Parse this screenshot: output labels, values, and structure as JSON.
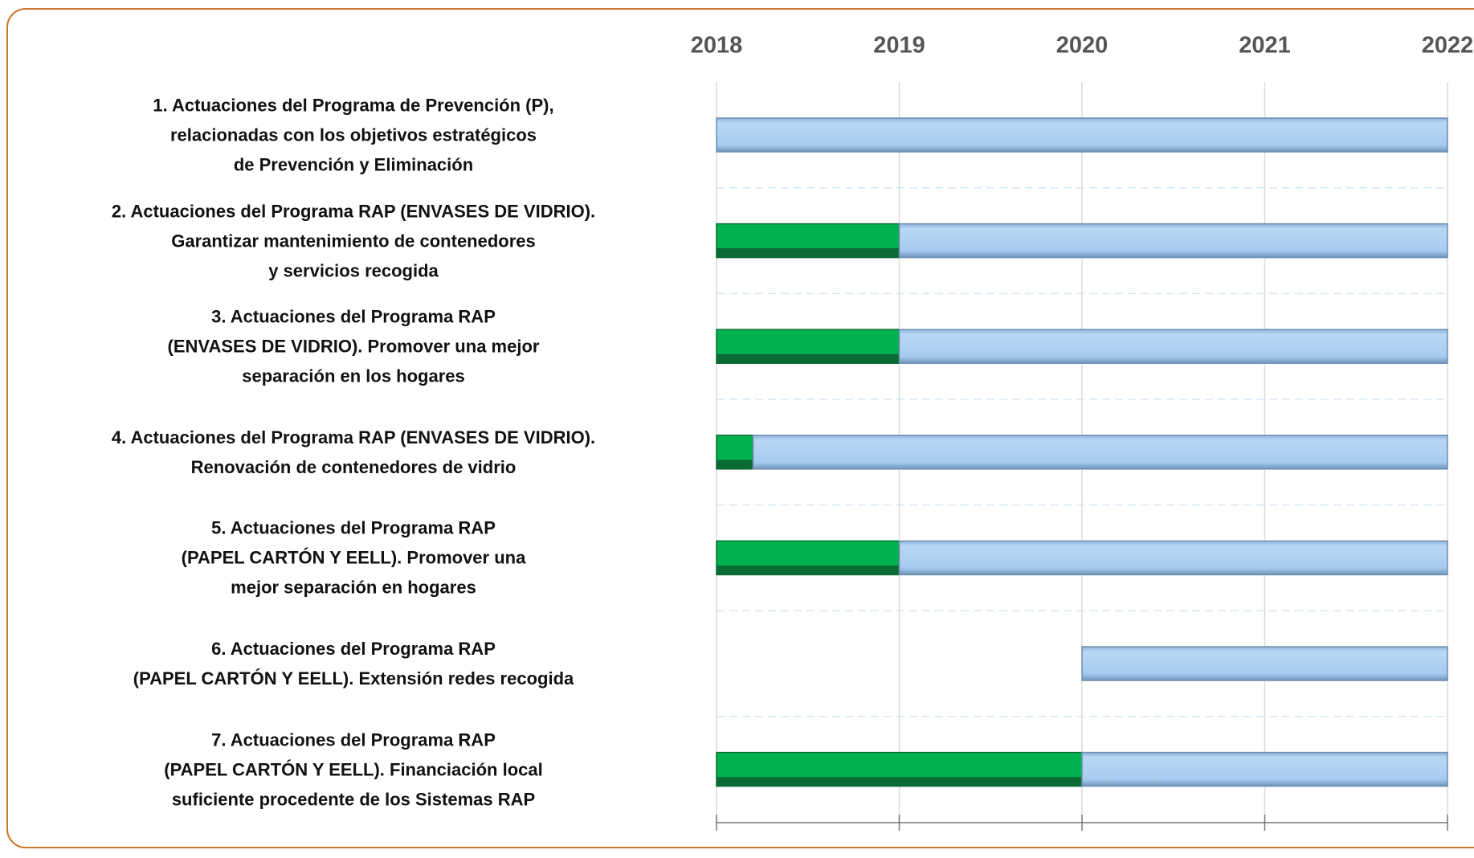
{
  "chart_data": {
    "type": "gantt",
    "categories": [
      "1. Actuaciones del Programa de Prevención (P),\nrelacionadas con los objetivos estratégicos\nde Prevención y Eliminación",
      "2. Actuaciones del Programa RAP (ENVASES DE VIDRIO).\nGarantizar mantenimiento de contenedores\ny servicios recogida",
      "3. Actuaciones del Programa RAP\n(ENVASES DE VIDRIO). Promover una mejor\nseparación en los hogares",
      "4. Actuaciones del Programa RAP (ENVASES DE VIDRIO).\nRenovación de contenedores de vidrio",
      "5. Actuaciones del Programa RAP\n(PAPEL CARTÓN Y EELL). Promover una\nmejor separación en hogares",
      "6. Actuaciones del Programa RAP\n(PAPEL CARTÓN Y EELL). Extensión redes recogida",
      "7. Actuaciones del Programa RAP\n(PAPEL CARTÓN Y EELL). Financiación local\nsuficiente procedente de los Sistemas RAP"
    ],
    "xlim": [
      2018,
      2022
    ],
    "xticks": [
      2018,
      2019,
      2020,
      2021,
      2022
    ],
    "series": [
      {
        "color": "none",
        "values": [
          0,
          0,
          0,
          0,
          0,
          2,
          0
        ]
      },
      {
        "color": "green",
        "values": [
          0,
          1,
          1,
          0.2,
          1,
          0,
          2
        ]
      },
      {
        "color": "blue",
        "values": [
          4,
          3,
          3,
          3.8,
          3,
          2,
          2
        ]
      }
    ]
  }
}
